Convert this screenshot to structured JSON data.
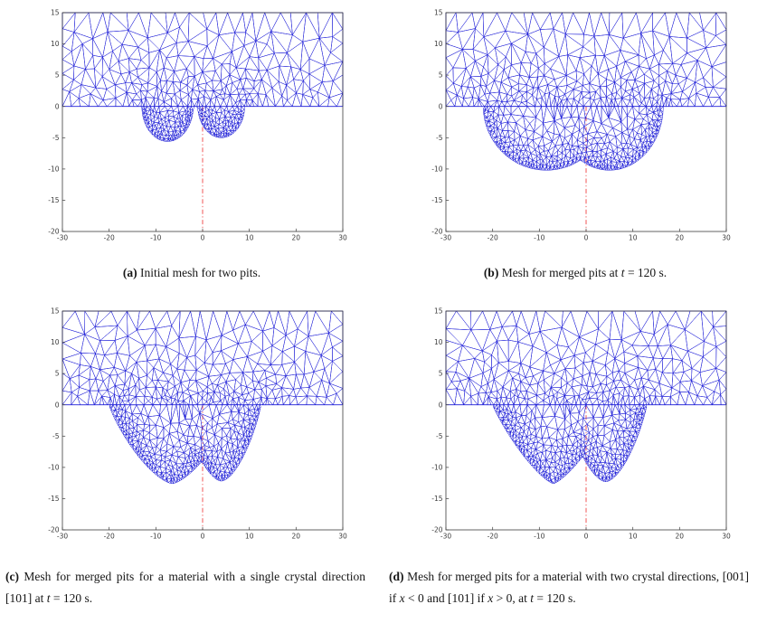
{
  "figure": {
    "panels": [
      {
        "id": "a",
        "axes": {
          "xlim": [
            -30,
            30
          ],
          "ylim": [
            -20,
            15
          ],
          "x_ticks": [
            -30,
            -20,
            -10,
            0,
            10,
            20,
            30
          ],
          "y_ticks": [
            15,
            10,
            5,
            0,
            -5,
            -10,
            -15,
            -20
          ]
        },
        "style": {
          "mesh_color": "#2020d8",
          "axis_color": "#3c3c3c",
          "centerline_color": "#ef4343"
        },
        "geometry": {
          "seed": 11,
          "curve_ds": 0.36,
          "upper_h": [
            1.35,
            0.13
          ],
          "mouth_h": [
            0.7,
            0.17
          ],
          "pit_h": [
            0.4,
            0.12
          ],
          "surface_y": 0,
          "pits": [
            {
              "c": -7.5,
              "r": 5.5,
              "d": 5.6,
              "a": 2,
              "b": 0.5
            },
            {
              "c": 4,
              "r": 5,
              "d": 5,
              "a": 2,
              "b": 0.5
            }
          ]
        }
      },
      {
        "id": "b",
        "axes": {
          "xlim": [
            -30,
            30
          ],
          "ylim": [
            -20,
            15
          ],
          "x_ticks": [
            -30,
            -20,
            -10,
            0,
            10,
            20,
            30
          ],
          "y_ticks": [
            15,
            10,
            5,
            0,
            -5,
            -10,
            -15,
            -20
          ]
        },
        "style": {
          "mesh_color": "#2020d8",
          "axis_color": "#3c3c3c",
          "centerline_color": "#ef4343"
        },
        "geometry": {
          "seed": 23,
          "curve_ds": 0.36,
          "upper_h": [
            1.35,
            0.13
          ],
          "mouth_h": [
            0.7,
            0.17
          ],
          "pit_h": [
            0.46,
            0.17
          ],
          "surface_y": 0,
          "pits": [
            {
              "c": -8.5,
              "r": 13.5,
              "d": 10.2,
              "a": 2,
              "b": 0.5
            },
            {
              "c": 5,
              "r": 11.5,
              "d": 10.2,
              "a": 2,
              "b": 0.5
            }
          ]
        }
      },
      {
        "id": "c",
        "axes": {
          "xlim": [
            -30,
            30
          ],
          "ylim": [
            -20,
            15
          ],
          "x_ticks": [
            -30,
            -20,
            -10,
            0,
            10,
            20,
            30
          ],
          "y_ticks": [
            15,
            10,
            5,
            0,
            -5,
            -10,
            -15,
            -20
          ]
        },
        "style": {
          "mesh_color": "#2020d8",
          "axis_color": "#3c3c3c",
          "centerline_color": "#ef4343"
        },
        "geometry": {
          "seed": 37,
          "curve_ds": 0.36,
          "upper_h": [
            1.35,
            0.13
          ],
          "mouth_h": [
            0.7,
            0.17
          ],
          "pit_h": [
            0.45,
            0.15
          ],
          "surface_y": 0,
          "pits": [
            {
              "c": -6.5,
              "r": 13.5,
              "d": 12.6,
              "a": 1.5,
              "b": 0.85
            },
            {
              "c": 4,
              "r": 8.5,
              "d": 12.2,
              "a": 1.7,
              "b": 0.85
            }
          ]
        }
      },
      {
        "id": "d",
        "axes": {
          "xlim": [
            -30,
            30
          ],
          "ylim": [
            -20,
            15
          ],
          "x_ticks": [
            -30,
            -20,
            -10,
            0,
            10,
            20,
            30
          ],
          "y_ticks": [
            15,
            10,
            5,
            0,
            -5,
            -10,
            -15,
            -20
          ]
        },
        "style": {
          "mesh_color": "#2020d8",
          "axis_color": "#3c3c3c",
          "centerline_color": "#ef4343"
        },
        "geometry": {
          "seed": 51,
          "curve_ds": 0.36,
          "upper_h": [
            1.35,
            0.13
          ],
          "mouth_h": [
            0.7,
            0.17
          ],
          "pit_h": [
            0.45,
            0.15
          ],
          "surface_y": 0,
          "pits": [
            {
              "c": -7,
              "r": 13,
              "d": 12.6,
              "a": 1.35,
              "b": 0.9
            },
            {
              "c": 4.2,
              "r": 8.8,
              "d": 12.3,
              "a": 1.7,
              "b": 0.85
            }
          ]
        }
      }
    ],
    "captions": {
      "a": {
        "label": "(a)",
        "segments": [
          {
            "text": " Initial mesh for two pits."
          }
        ]
      },
      "b": {
        "label": "(b)",
        "segments": [
          {
            "text": " Mesh for merged pits at "
          },
          {
            "text": "t",
            "italic": true
          },
          {
            "text": " = 120 s."
          }
        ]
      },
      "c": {
        "label": "(c)",
        "segments": [
          {
            "text": " Mesh for merged pits for a material with a single crystal direction [101] at "
          },
          {
            "text": "t",
            "italic": true
          },
          {
            "text": " = 120 s."
          }
        ]
      },
      "d": {
        "label": "(d)",
        "segments": [
          {
            "text": " Mesh for merged pits for a material with two crystal directions, [001] if "
          },
          {
            "text": "x",
            "italic": true
          },
          {
            "text": " < 0 and [101] if "
          },
          {
            "text": "x",
            "italic": true
          },
          {
            "text": " > 0, at "
          },
          {
            "text": "t",
            "italic": true
          },
          {
            "text": " = 120 s."
          }
        ]
      }
    }
  }
}
